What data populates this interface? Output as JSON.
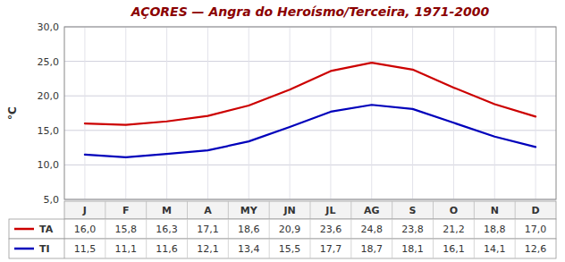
{
  "chart_data": {
    "type": "line",
    "title": "AÇORES — Angra do Heroísmo/Terceira, 1971-2000",
    "ylabel": "°C",
    "categories": [
      "J",
      "F",
      "M",
      "A",
      "MY",
      "JN",
      "JL",
      "AG",
      "S",
      "O",
      "N",
      "D"
    ],
    "series": [
      {
        "name": "TA",
        "color": "#cc0000",
        "values": [
          16.0,
          15.8,
          16.3,
          17.1,
          18.6,
          20.9,
          23.6,
          24.8,
          23.8,
          21.2,
          18.8,
          17.0
        ],
        "value_labels": [
          "16,0",
          "15,8",
          "16,3",
          "17,1",
          "18,6",
          "20,9",
          "23,6",
          "24,8",
          "23,8",
          "21,2",
          "18,8",
          "17,0"
        ]
      },
      {
        "name": "TI",
        "color": "#0000bb",
        "values": [
          11.5,
          11.1,
          11.6,
          12.1,
          13.4,
          15.5,
          17.7,
          18.7,
          18.1,
          16.1,
          14.1,
          12.6
        ],
        "value_labels": [
          "11,5",
          "11,1",
          "11,6",
          "12,1",
          "13,4",
          "15,5",
          "17,7",
          "18,7",
          "18,1",
          "16,1",
          "14,1",
          "12,6"
        ]
      }
    ],
    "ylim": [
      5.0,
      30.0
    ],
    "yticks": [
      {
        "value": 5.0,
        "label": "5,0"
      },
      {
        "value": 10.0,
        "label": "10,0"
      },
      {
        "value": 15.0,
        "label": "15,0"
      },
      {
        "value": 20.0,
        "label": "20,0"
      },
      {
        "value": 25.0,
        "label": "25,0"
      },
      {
        "value": 30.0,
        "label": "30,0"
      }
    ],
    "grid": true,
    "data_labels": true
  }
}
